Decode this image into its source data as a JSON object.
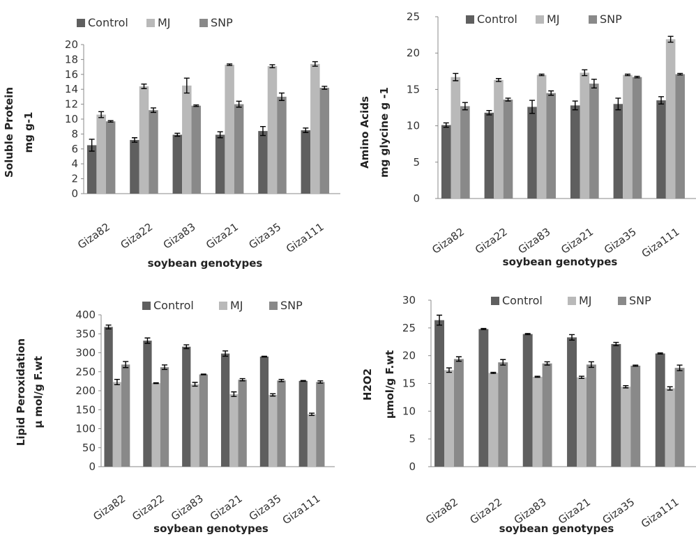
{
  "colors": {
    "Control": "#5f5f5f",
    "MJ": "#b9b9b9",
    "SNP": "#898989",
    "error_bar": "#000000"
  },
  "chart_data": [
    {
      "type": "bar",
      "ylabel": [
        "Soluble Protein",
        "mg g-1"
      ],
      "xlabel": "soybean genotypes",
      "categories": [
        "Giza82",
        "Giza22",
        "Giza83",
        "Giza21",
        "Giza35",
        "Giza111"
      ],
      "ylim": [
        0,
        20
      ],
      "yticks": [
        0,
        2,
        4,
        6,
        8,
        10,
        12,
        14,
        16,
        18,
        20
      ],
      "legend_position": "top-left",
      "grid": false,
      "series": [
        {
          "name": "Control",
          "values": [
            6.5,
            7.2,
            7.9,
            7.9,
            8.4,
            8.5
          ],
          "errors": [
            0.8,
            0.3,
            0.2,
            0.4,
            0.6,
            0.3
          ]
        },
        {
          "name": "MJ",
          "values": [
            10.6,
            14.4,
            14.5,
            17.3,
            17.1,
            17.4
          ],
          "errors": [
            0.4,
            0.3,
            1.0,
            0.1,
            0.2,
            0.3
          ]
        },
        {
          "name": "SNP",
          "values": [
            9.7,
            11.2,
            11.8,
            12.0,
            13.0,
            14.2
          ],
          "errors": [
            0.1,
            0.3,
            0.1,
            0.4,
            0.5,
            0.2
          ]
        }
      ]
    },
    {
      "type": "bar",
      "ylabel": [
        "Amino Acids",
        "mg glycine g -1"
      ],
      "xlabel": "soybean genotypes",
      "categories": [
        "Giza82",
        "Giza22",
        "Giza83",
        "Giza21",
        "Giza35",
        "Giza111"
      ],
      "ylim": [
        0,
        25
      ],
      "yticks": [
        0,
        5,
        10,
        15,
        20,
        25
      ],
      "legend_position": "top-right",
      "grid": false,
      "series": [
        {
          "name": "Control",
          "values": [
            10.1,
            11.8,
            12.6,
            12.8,
            13.0,
            13.5
          ],
          "errors": [
            0.3,
            0.3,
            0.9,
            0.6,
            0.8,
            0.5
          ]
        },
        {
          "name": "MJ",
          "values": [
            16.7,
            16.3,
            17.0,
            17.3,
            17.0,
            21.9
          ],
          "errors": [
            0.5,
            0.2,
            0.1,
            0.4,
            0.1,
            0.4
          ]
        },
        {
          "name": "SNP",
          "values": [
            12.7,
            13.6,
            14.5,
            15.8,
            16.7,
            17.1
          ],
          "errors": [
            0.5,
            0.2,
            0.3,
            0.6,
            0.1,
            0.1
          ]
        }
      ]
    },
    {
      "type": "bar",
      "ylabel": [
        "Lipid Peroxidation",
        "µ mol/g F.wt"
      ],
      "xlabel": "soybean genotypes",
      "categories": [
        "Giza82",
        "Giza22",
        "Giza83",
        "Giza21",
        "Giza35",
        "Giza111"
      ],
      "ylim": [
        0,
        400
      ],
      "yticks": [
        0,
        50,
        100,
        150,
        200,
        250,
        300,
        350,
        400
      ],
      "legend_position": "top-right",
      "grid": false,
      "series": [
        {
          "name": "Control",
          "values": [
            368,
            332,
            316,
            298,
            290,
            226
          ],
          "errors": [
            5,
            7,
            5,
            7,
            1,
            1
          ]
        },
        {
          "name": "MJ",
          "values": [
            223,
            220,
            217,
            191,
            189,
            138
          ],
          "errors": [
            7,
            1,
            5,
            6,
            3,
            3
          ]
        },
        {
          "name": "SNP",
          "values": [
            269,
            262,
            243,
            229,
            227,
            223
          ],
          "errors": [
            8,
            6,
            1,
            3,
            3,
            3
          ]
        }
      ]
    },
    {
      "type": "bar",
      "ylabel": [
        "H2O2",
        "µmol/g  F.wt"
      ],
      "xlabel": "soybean genotypes",
      "categories": [
        "Giza82",
        "Giza22",
        "Giza83",
        "Giza21",
        "Giza35",
        "Giza111"
      ],
      "ylim": [
        0,
        30
      ],
      "yticks": [
        0,
        5,
        10,
        15,
        20,
        25,
        30
      ],
      "legend_position": "top-right",
      "grid": false,
      "series": [
        {
          "name": "Control",
          "values": [
            26.4,
            24.8,
            23.9,
            23.3,
            22.1,
            20.4
          ],
          "errors": [
            0.9,
            0.1,
            0.1,
            0.5,
            0.3,
            0.1
          ]
        },
        {
          "name": "MJ",
          "values": [
            17.4,
            16.9,
            16.2,
            16.1,
            14.4,
            14.1
          ],
          "errors": [
            0.4,
            0.1,
            0.1,
            0.2,
            0.2,
            0.3
          ]
        },
        {
          "name": "SNP",
          "values": [
            19.4,
            18.8,
            18.6,
            18.4,
            18.2,
            17.8
          ],
          "errors": [
            0.4,
            0.5,
            0.3,
            0.5,
            0.1,
            0.5
          ]
        }
      ]
    }
  ]
}
